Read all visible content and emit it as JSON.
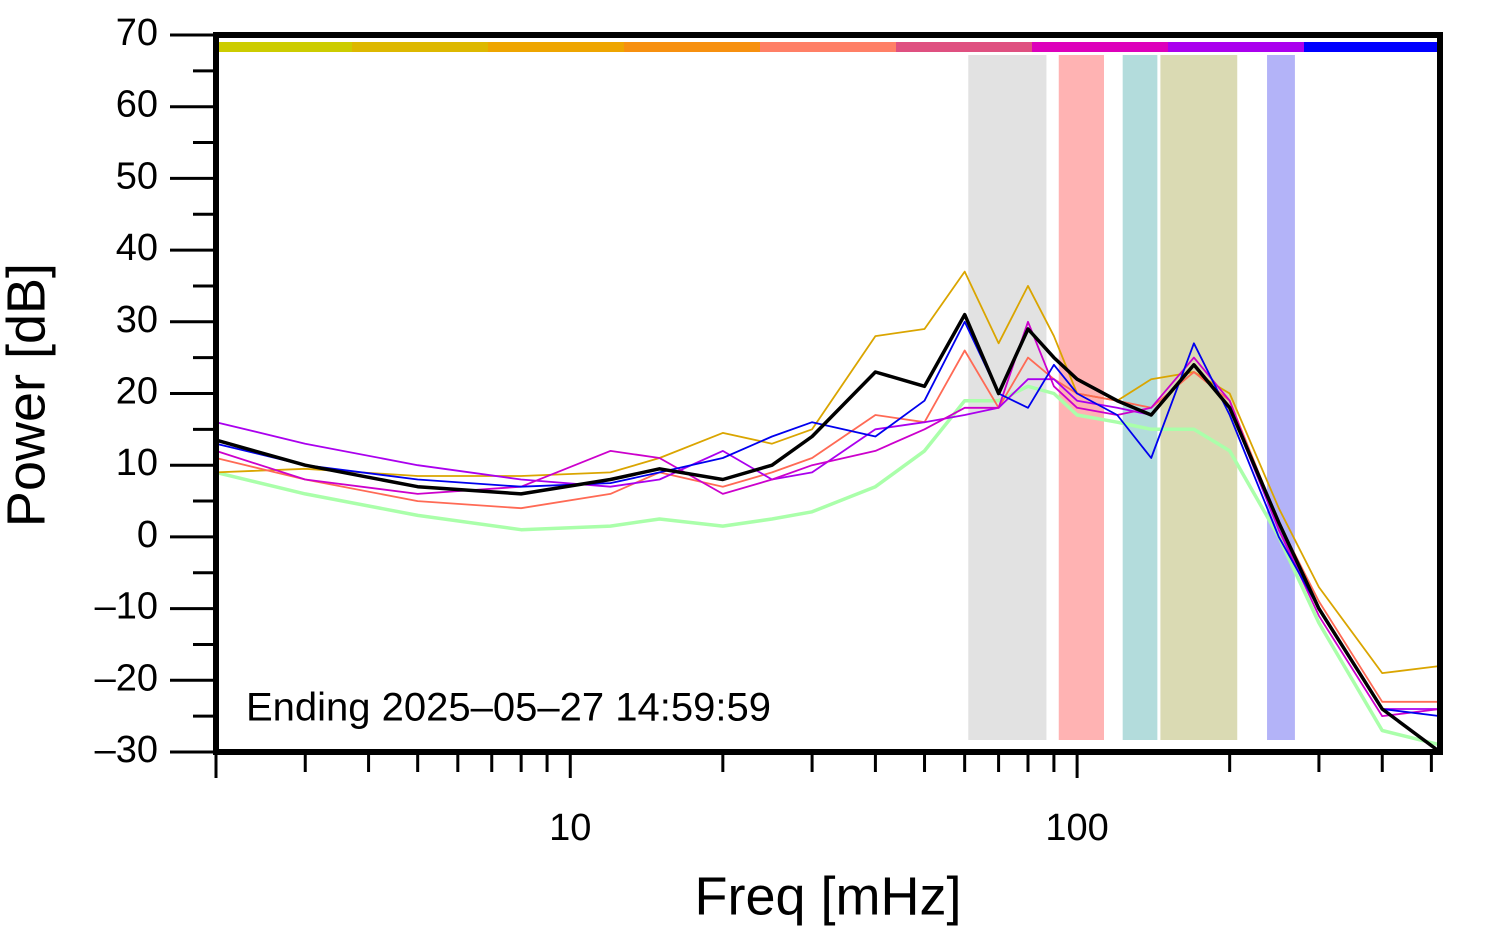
{
  "chart_data": {
    "type": "line",
    "xscale": "log",
    "xlabel": "Freq [mHz]",
    "ylabel": "Power [dB]",
    "annotation": "Ending 2025–05–27 14:59:59",
    "xlim": [
      2,
      520
    ],
    "ylim": [
      -30,
      70
    ],
    "xticks": [
      10,
      100
    ],
    "xminorticks": [
      3,
      4,
      5,
      6,
      7,
      8,
      9,
      20,
      30,
      40,
      50,
      60,
      70,
      80,
      90,
      200,
      300,
      400,
      500
    ],
    "yticks": [
      {
        "value": -30,
        "label": "–30"
      },
      {
        "value": -20,
        "label": "–20"
      },
      {
        "value": -10,
        "label": "–10"
      },
      0,
      10,
      20,
      30,
      40,
      50,
      60,
      70
    ],
    "yminorticks": [
      -25,
      -15,
      -5,
      5,
      15,
      25,
      35,
      45,
      55,
      65
    ],
    "colorbar": [
      "#cccc00",
      "#ddb800",
      "#eea500",
      "#f7900f",
      "#ff7f66",
      "#df5080",
      "#dd00bb",
      "#aa00ee",
      "#0000ff"
    ],
    "bands": [
      {
        "x": [
          61,
          87
        ],
        "color": "#e2e2e2"
      },
      {
        "x": [
          92,
          113
        ],
        "color": "#ffb3b3"
      },
      {
        "x": [
          123,
          144
        ],
        "color": "#b3dcdc"
      },
      {
        "x": [
          146,
          207
        ],
        "color": "#dadab3"
      },
      {
        "x": [
          237,
          269
        ],
        "color": "#b3b3f8"
      }
    ],
    "x": [
      2,
      3,
      5,
      8,
      12,
      15,
      20,
      25,
      30,
      40,
      50,
      60,
      70,
      80,
      90,
      100,
      120,
      140,
      170,
      200,
      250,
      300,
      400,
      520
    ],
    "series": [
      {
        "color": "#aaffaa",
        "width": 3.5,
        "values": [
          9,
          6,
          3,
          1,
          1.5,
          2.5,
          1.5,
          2.5,
          3.5,
          7,
          12,
          19,
          19,
          21,
          20,
          17,
          16,
          15,
          15,
          12,
          0,
          -12,
          -27,
          -29
        ]
      },
      {
        "color": "#daa500",
        "width": 1.8,
        "values": [
          9,
          9.5,
          8.5,
          8.5,
          9,
          11,
          14.5,
          13,
          15,
          28,
          29,
          37,
          27,
          35,
          28,
          20,
          19,
          22,
          23,
          20,
          4,
          -7,
          -19,
          -18
        ]
      },
      {
        "color": "#ff6a55",
        "width": 1.8,
        "values": [
          11,
          8,
          5,
          4,
          6,
          9,
          7,
          9,
          11,
          17,
          16,
          26,
          18,
          25,
          22,
          20,
          19,
          18,
          23,
          19,
          2,
          -9,
          -23,
          -23
        ]
      },
      {
        "color": "#aa00ee",
        "width": 1.8,
        "values": [
          16,
          13,
          10,
          8,
          7,
          8,
          12,
          8,
          9,
          15,
          16,
          17,
          18,
          22,
          22,
          19,
          18,
          17,
          24,
          18,
          1,
          -10,
          -24,
          -24
        ]
      },
      {
        "color": "#cc00cc",
        "width": 1.8,
        "values": [
          12,
          8,
          6,
          7,
          12,
          11,
          6,
          8,
          10,
          12,
          15,
          18,
          18,
          30,
          21,
          18,
          17,
          18,
          25,
          19,
          1,
          -11,
          -25,
          -24
        ]
      },
      {
        "color": "#0000ee",
        "width": 1.8,
        "values": [
          13,
          10,
          8,
          7,
          7.5,
          9,
          11,
          14,
          16,
          14,
          19,
          30,
          20,
          18,
          24,
          20,
          17,
          11,
          27,
          17,
          0,
          -10,
          -24,
          -25
        ]
      },
      {
        "color": "#000000",
        "width": 3.5,
        "values": [
          13.5,
          10,
          7,
          6,
          8,
          9.5,
          8,
          10,
          14,
          23,
          21,
          31,
          20,
          29,
          25,
          22,
          19,
          17,
          24,
          18,
          2,
          -10,
          -24,
          -30
        ]
      }
    ]
  }
}
